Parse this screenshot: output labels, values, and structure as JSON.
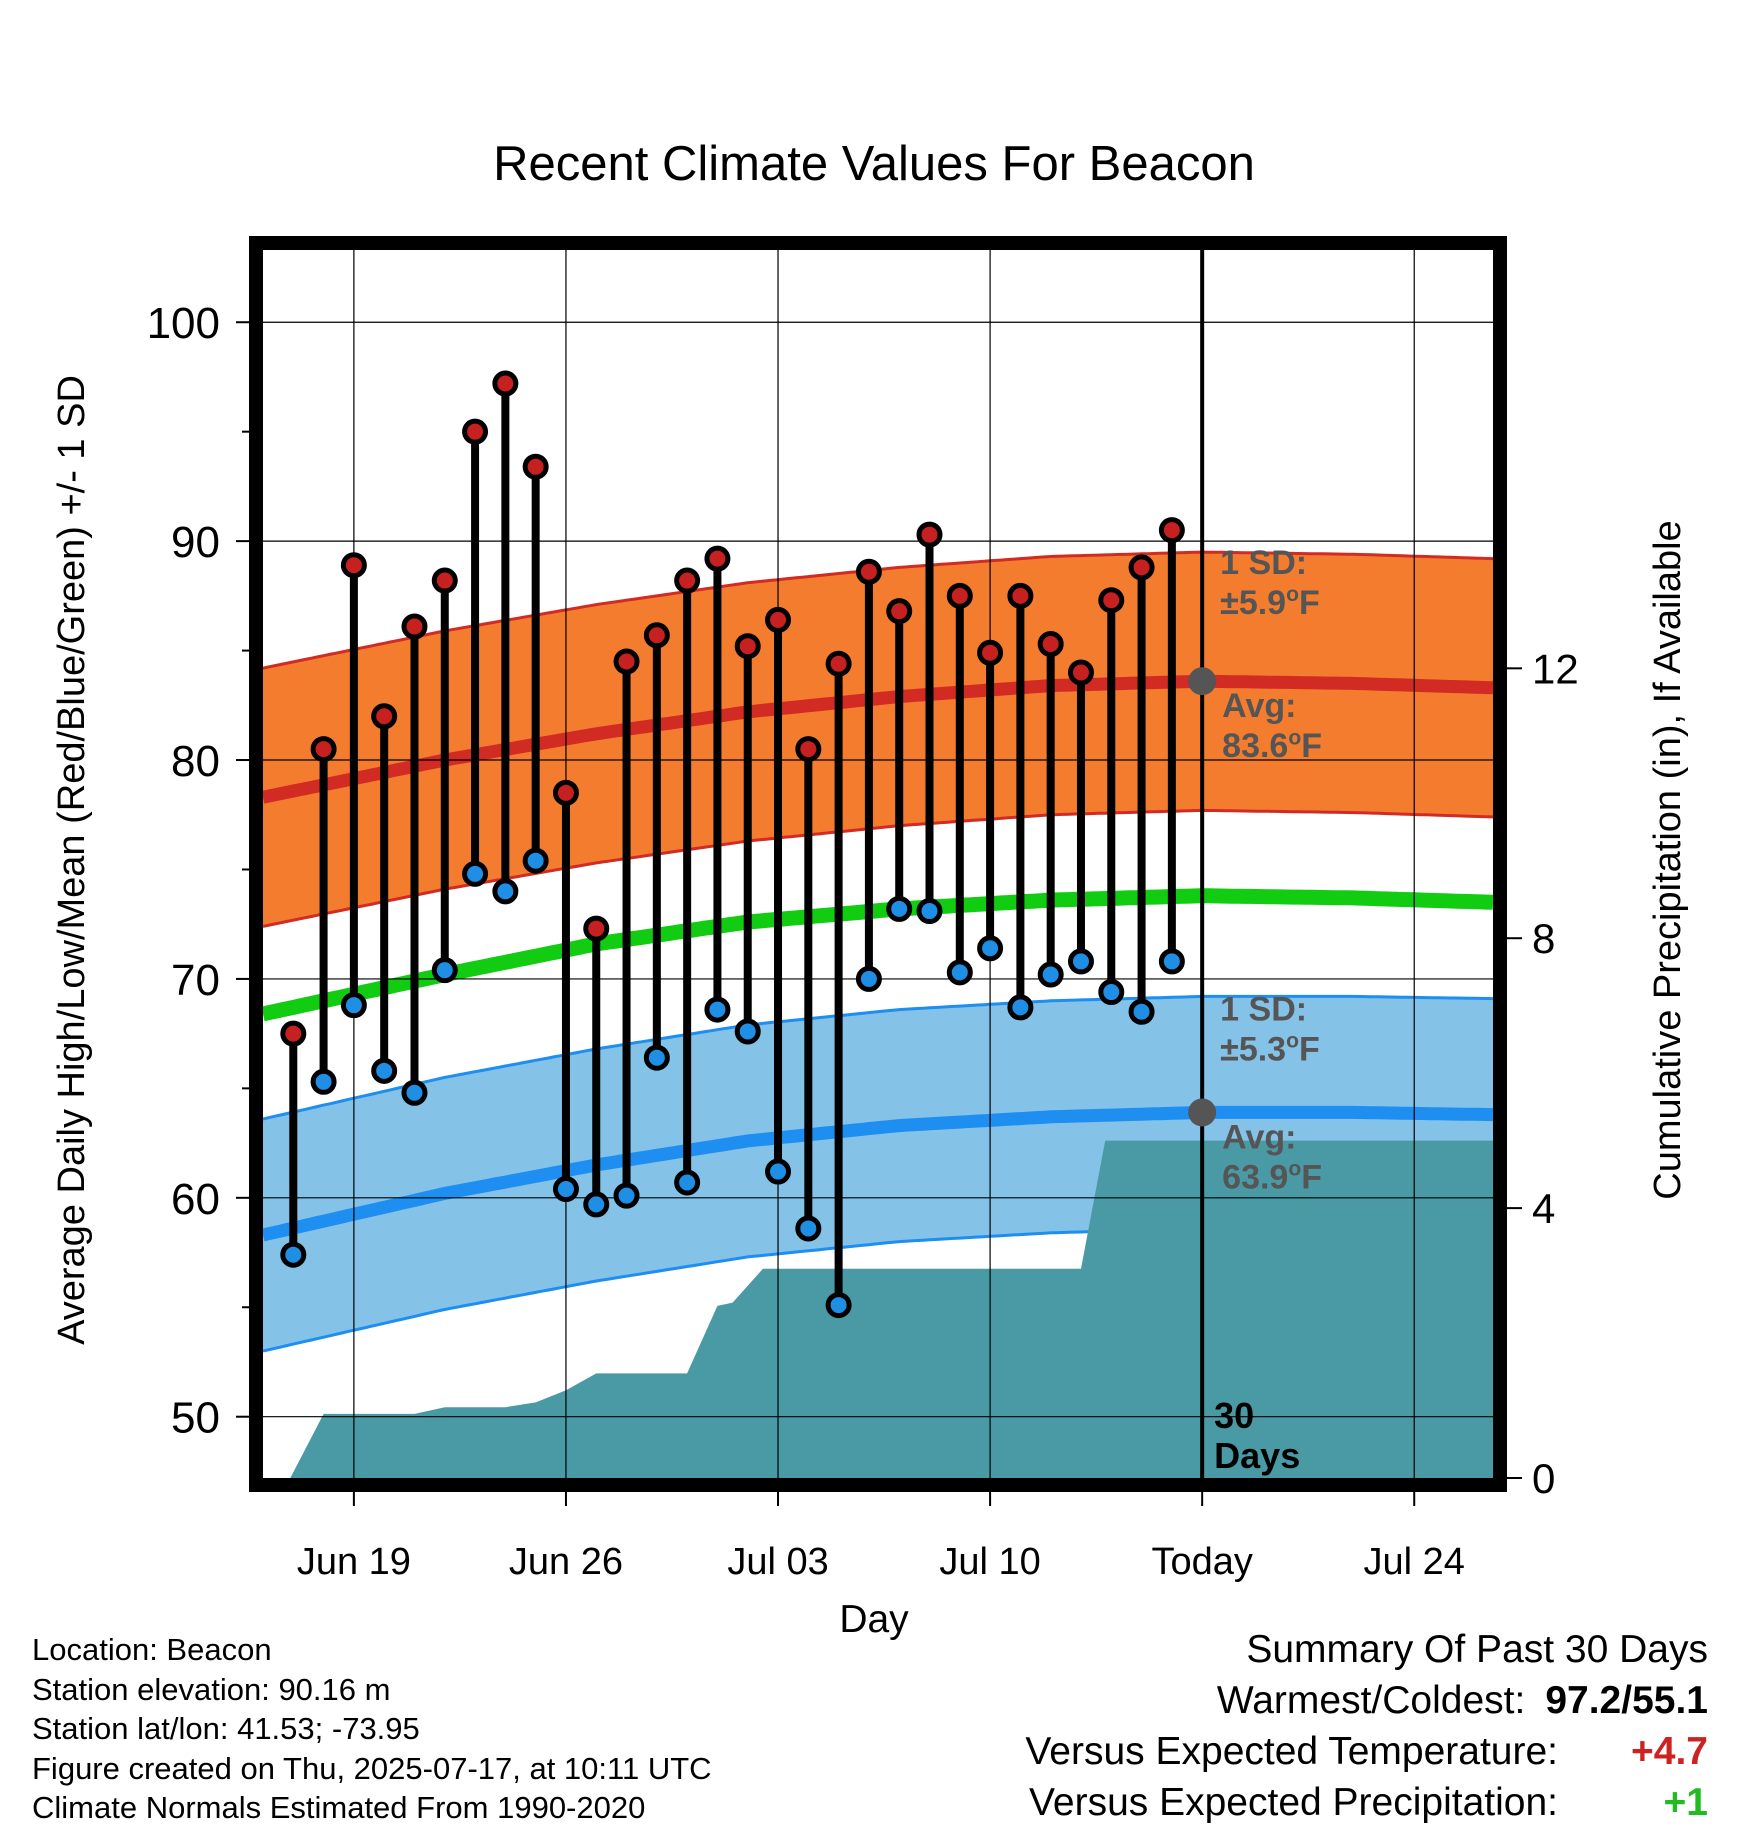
{
  "chart_data": {
    "type": "line",
    "title": "Recent Climate Values For Beacon",
    "xlabel": "Day",
    "ylabel": "Average Daily High/Low/Mean (Red/Blue/Green) +/- 1 SD",
    "y2label": "Cumulative Precipitation (in), If Available",
    "ylim": [
      47.2,
      103.3
    ],
    "y2lim": [
      0,
      18.2
    ],
    "y_ticks": [
      "50",
      "60",
      "70",
      "80",
      "90",
      "100"
    ],
    "y2_ticks": [
      "0",
      "4",
      "8",
      "12"
    ],
    "x_tick_labels": [
      "Jun 19",
      "Jun 26",
      "Jul 03",
      "Jul 10",
      "Today",
      "Jul 24"
    ],
    "x_tick_days": [
      -28,
      -21,
      -14,
      -7,
      0,
      7
    ],
    "x_range_days": [
      -31,
      9.6
    ],
    "grid": true,
    "observed_days": [
      -30,
      -29,
      -28,
      -27,
      -26,
      -25,
      -24,
      -23,
      -22,
      -21,
      -20,
      -19,
      -18,
      -17,
      -16,
      -15,
      -14,
      -13,
      -12,
      -11,
      -10,
      -9,
      -8,
      -7,
      -6,
      -5,
      -4,
      -3,
      -2,
      -1
    ],
    "daily_high": [
      67.5,
      80.5,
      88.9,
      82.0,
      86.1,
      88.2,
      95.0,
      97.2,
      93.4,
      78.5,
      72.3,
      84.5,
      85.7,
      88.2,
      89.2,
      85.2,
      86.4,
      80.5,
      84.4,
      88.6,
      86.8,
      90.3,
      87.5,
      84.9,
      87.5,
      85.3,
      84.0,
      87.3,
      88.8,
      90.5
    ],
    "daily_low": [
      57.4,
      65.3,
      68.8,
      65.8,
      64.8,
      70.4,
      74.8,
      74.0,
      75.4,
      60.4,
      59.7,
      60.1,
      66.4,
      60.7,
      68.6,
      67.6,
      61.2,
      58.6,
      55.1,
      70.0,
      73.2,
      73.1,
      70.3,
      71.4,
      68.7,
      70.2,
      70.8,
      69.4,
      68.5,
      70.8
    ],
    "normal_days": [
      -31,
      -25,
      -20,
      -15,
      -10,
      -5,
      0,
      5,
      9.6
    ],
    "normal_high": [
      78.3,
      80.0,
      81.2,
      82.2,
      82.9,
      83.4,
      83.6,
      83.5,
      83.3
    ],
    "normal_high_sd": 5.9,
    "normal_mean": [
      68.4,
      70.2,
      71.6,
      72.6,
      73.2,
      73.6,
      73.8,
      73.7,
      73.5
    ],
    "normal_low": [
      58.3,
      60.2,
      61.5,
      62.6,
      63.3,
      63.7,
      63.9,
      63.9,
      63.8
    ],
    "normal_low_sd": 5.3,
    "precip_days": [
      -30.1,
      -29,
      -26,
      -25,
      -23,
      -22,
      -21,
      -20,
      -17,
      -16,
      -15.5,
      -14.5,
      -10,
      -4,
      -3.2,
      9.6
    ],
    "precip_cumulative": [
      0,
      0.95,
      0.95,
      1.05,
      1.05,
      1.12,
      1.3,
      1.55,
      1.55,
      2.55,
      2.6,
      3.1,
      3.1,
      3.1,
      5.0,
      5.0
    ],
    "high_sd_label": [
      "1 SD:",
      "±5.9°F"
    ],
    "high_avg_label": [
      "Avg:",
      "83.6°F"
    ],
    "low_sd_label": [
      "1 SD:",
      "±5.3°F"
    ],
    "low_avg_label": [
      "Avg:",
      "63.9°F"
    ],
    "period_label": [
      "30",
      "Days"
    ],
    "colors": {
      "high_band": "#f47c2f",
      "high_line": "#d12b24",
      "mean_line": "#11cc11",
      "low_band": "#84c2e8",
      "low_line": "#1e8ef0",
      "precip": "#4a9aa5",
      "high_dot": "#c62020",
      "low_dot": "#1f8fe6",
      "today_dot": "#555555",
      "sd_text": "#555555"
    }
  },
  "footer": {
    "location": "Location: Beacon",
    "elevation": "Station elevation: 90.16 m",
    "latlon": "Station lat/lon: 41.53; -73.95",
    "created": "Figure created on Thu, 2025-07-17, at 10:11 UTC",
    "normals": "Climate Normals Estimated From 1990-2020"
  },
  "summary": {
    "title": "Summary Of Past 30 Days",
    "warmest_coldest_label": "Warmest/Coldest:",
    "warmest_coldest_value": "97.2/55.1",
    "temp_label": "Versus Expected Temperature:",
    "temp_value": "+4.7",
    "temp_color": "#cc2222",
    "precip_label": "Versus Expected Precipitation:",
    "precip_value": "+1",
    "precip_color": "#22bb22"
  }
}
